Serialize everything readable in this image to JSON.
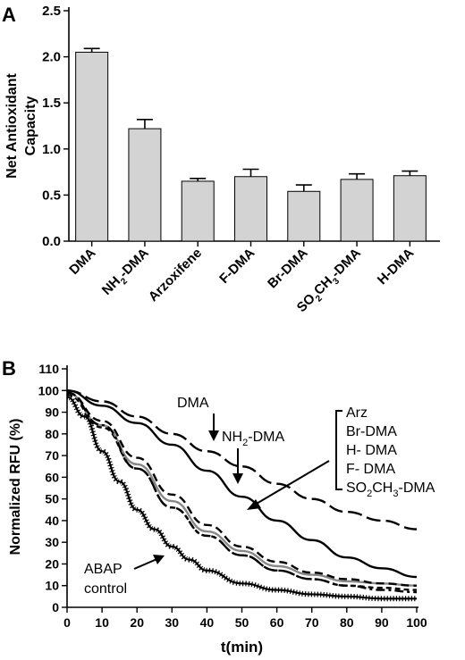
{
  "chart_data": [
    {
      "panel_label": "A",
      "type": "bar",
      "ylabel_lines": [
        "Net Antioxidant",
        "Capacity"
      ],
      "ylim": [
        0,
        2.5
      ],
      "yticks": [
        "0.0",
        "0.5",
        "1.0",
        "1.5",
        "2.0",
        "2.5"
      ],
      "categories": [
        {
          "label": "DMA"
        },
        {
          "label": "NH",
          "sub": "2",
          "rest": "-DMA"
        },
        {
          "label": "Arzoxifene"
        },
        {
          "label": "F-DMA"
        },
        {
          "label": "Br-DMA"
        },
        {
          "label": "SO",
          "sub": "2",
          "mid": "CH",
          "sub2": "3",
          "rest": "-DMA"
        },
        {
          "label": "H-DMA"
        }
      ],
      "values": [
        2.05,
        1.22,
        0.65,
        0.7,
        0.54,
        0.67,
        0.71
      ],
      "errors": [
        0.04,
        0.1,
        0.03,
        0.08,
        0.07,
        0.06,
        0.05
      ],
      "bar_color": "#d3d3d3"
    },
    {
      "panel_label": "B",
      "type": "line",
      "xlabel": "t(min)",
      "ylabel": "Normalized RFU (%)",
      "xlim": [
        0,
        100
      ],
      "ylim": [
        0,
        110
      ],
      "xticks": [
        "0",
        "10",
        "20",
        "30",
        "40",
        "50",
        "60",
        "70",
        "80",
        "90",
        "100"
      ],
      "yticks": [
        "0",
        "10",
        "20",
        "30",
        "40",
        "50",
        "60",
        "70",
        "80",
        "90",
        "100",
        "110"
      ],
      "series": [
        {
          "style": "long-dash",
          "color": "#000000",
          "x": [
            0,
            10,
            20,
            30,
            40,
            50,
            60,
            70,
            80,
            90,
            100
          ],
          "y": [
            100,
            95,
            88,
            80,
            72,
            65,
            57,
            50,
            44,
            40,
            36
          ]
        },
        {
          "style": "solid",
          "color": "#000000",
          "x": [
            0,
            10,
            20,
            30,
            40,
            50,
            60,
            70,
            80,
            90,
            100
          ],
          "y": [
            100,
            93,
            85,
            75,
            63,
            51,
            40,
            31,
            23,
            18,
            14
          ]
        },
        {
          "style": "short-dash",
          "color": "#000000",
          "x": [
            0,
            10,
            20,
            30,
            40,
            50,
            60,
            70,
            80,
            90,
            100
          ],
          "y": [
            98,
            83,
            64,
            46,
            33,
            24,
            17,
            13,
            10,
            9,
            8
          ]
        },
        {
          "style": "solid",
          "color": "#888888",
          "x": [
            0,
            10,
            20,
            30,
            40,
            50,
            60,
            70,
            80,
            90,
            100
          ],
          "y": [
            99,
            84,
            66,
            49,
            35,
            26,
            19,
            15,
            12,
            11,
            10
          ]
        },
        {
          "style": "dash",
          "color": "#000000",
          "x": [
            0,
            10,
            20,
            30,
            40,
            50,
            60,
            70,
            80,
            90,
            100
          ],
          "y": [
            99,
            86,
            69,
            52,
            38,
            28,
            21,
            16,
            13,
            11,
            10
          ]
        },
        {
          "style": "dash-dot",
          "color": "#000000",
          "x": [
            0,
            10,
            20,
            30,
            40,
            50,
            60,
            70,
            80,
            90,
            100
          ],
          "y": [
            99,
            84,
            64,
            46,
            33,
            24,
            17,
            13,
            10,
            8,
            7
          ]
        },
        {
          "style": "hatched",
          "color": "#000000",
          "x": [
            0,
            5,
            10,
            15,
            20,
            25,
            30,
            35,
            40,
            50,
            60,
            70,
            80,
            90,
            100
          ],
          "y": [
            97,
            88,
            72,
            58,
            45,
            36,
            28,
            22,
            17,
            11,
            8,
            6,
            5,
            4,
            4
          ]
        }
      ],
      "annotations": [
        {
          "text": "DMA"
        },
        {
          "text": "NH",
          "sub": "2",
          "rest": "-DMA"
        },
        {
          "text": "ABAP"
        },
        {
          "text": "control"
        }
      ],
      "bracket_labels": [
        {
          "text": "Arz"
        },
        {
          "text": "Br-DMA"
        },
        {
          "text": "H- DMA"
        },
        {
          "text": "F- DMA"
        },
        {
          "text": "SO",
          "sub": "2",
          "mid": "CH",
          "sub2": "3",
          "rest": "-DMA"
        }
      ]
    }
  ]
}
